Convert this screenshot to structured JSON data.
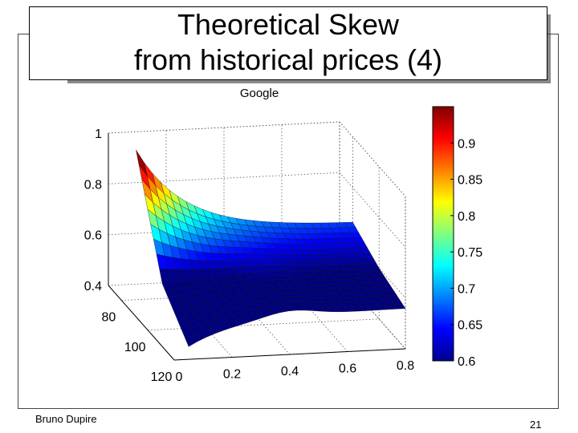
{
  "slide": {
    "title_line1": "Theoretical Skew",
    "title_line2": "from historical prices (4)",
    "author": "Bruno Dupire",
    "page_number": "21"
  },
  "chart_data": {
    "type": "surface",
    "title": "Google",
    "x_axis": {
      "ticks": [
        0,
        0.2,
        0.4,
        0.6,
        0.8
      ],
      "range": [
        0,
        0.8
      ]
    },
    "y_axis": {
      "ticks": [
        80,
        100,
        120
      ],
      "range": [
        70,
        120
      ]
    },
    "z_axis": {
      "ticks": [
        0.4,
        0.6,
        0.8,
        1
      ],
      "range": [
        0.4,
        1
      ]
    },
    "colorbar": {
      "ticks": [
        0.6,
        0.65,
        0.7,
        0.75,
        0.8,
        0.85,
        0.9
      ],
      "range": [
        0.6,
        0.95
      ],
      "colormap": "jet"
    },
    "surface_profile": {
      "strike_near_to_far": [
        120,
        100,
        80
      ],
      "maturity_start_values": [
        0.45,
        0.58,
        0.99
      ],
      "maturity_end_values": [
        0.56,
        0.6,
        0.66
      ]
    }
  }
}
